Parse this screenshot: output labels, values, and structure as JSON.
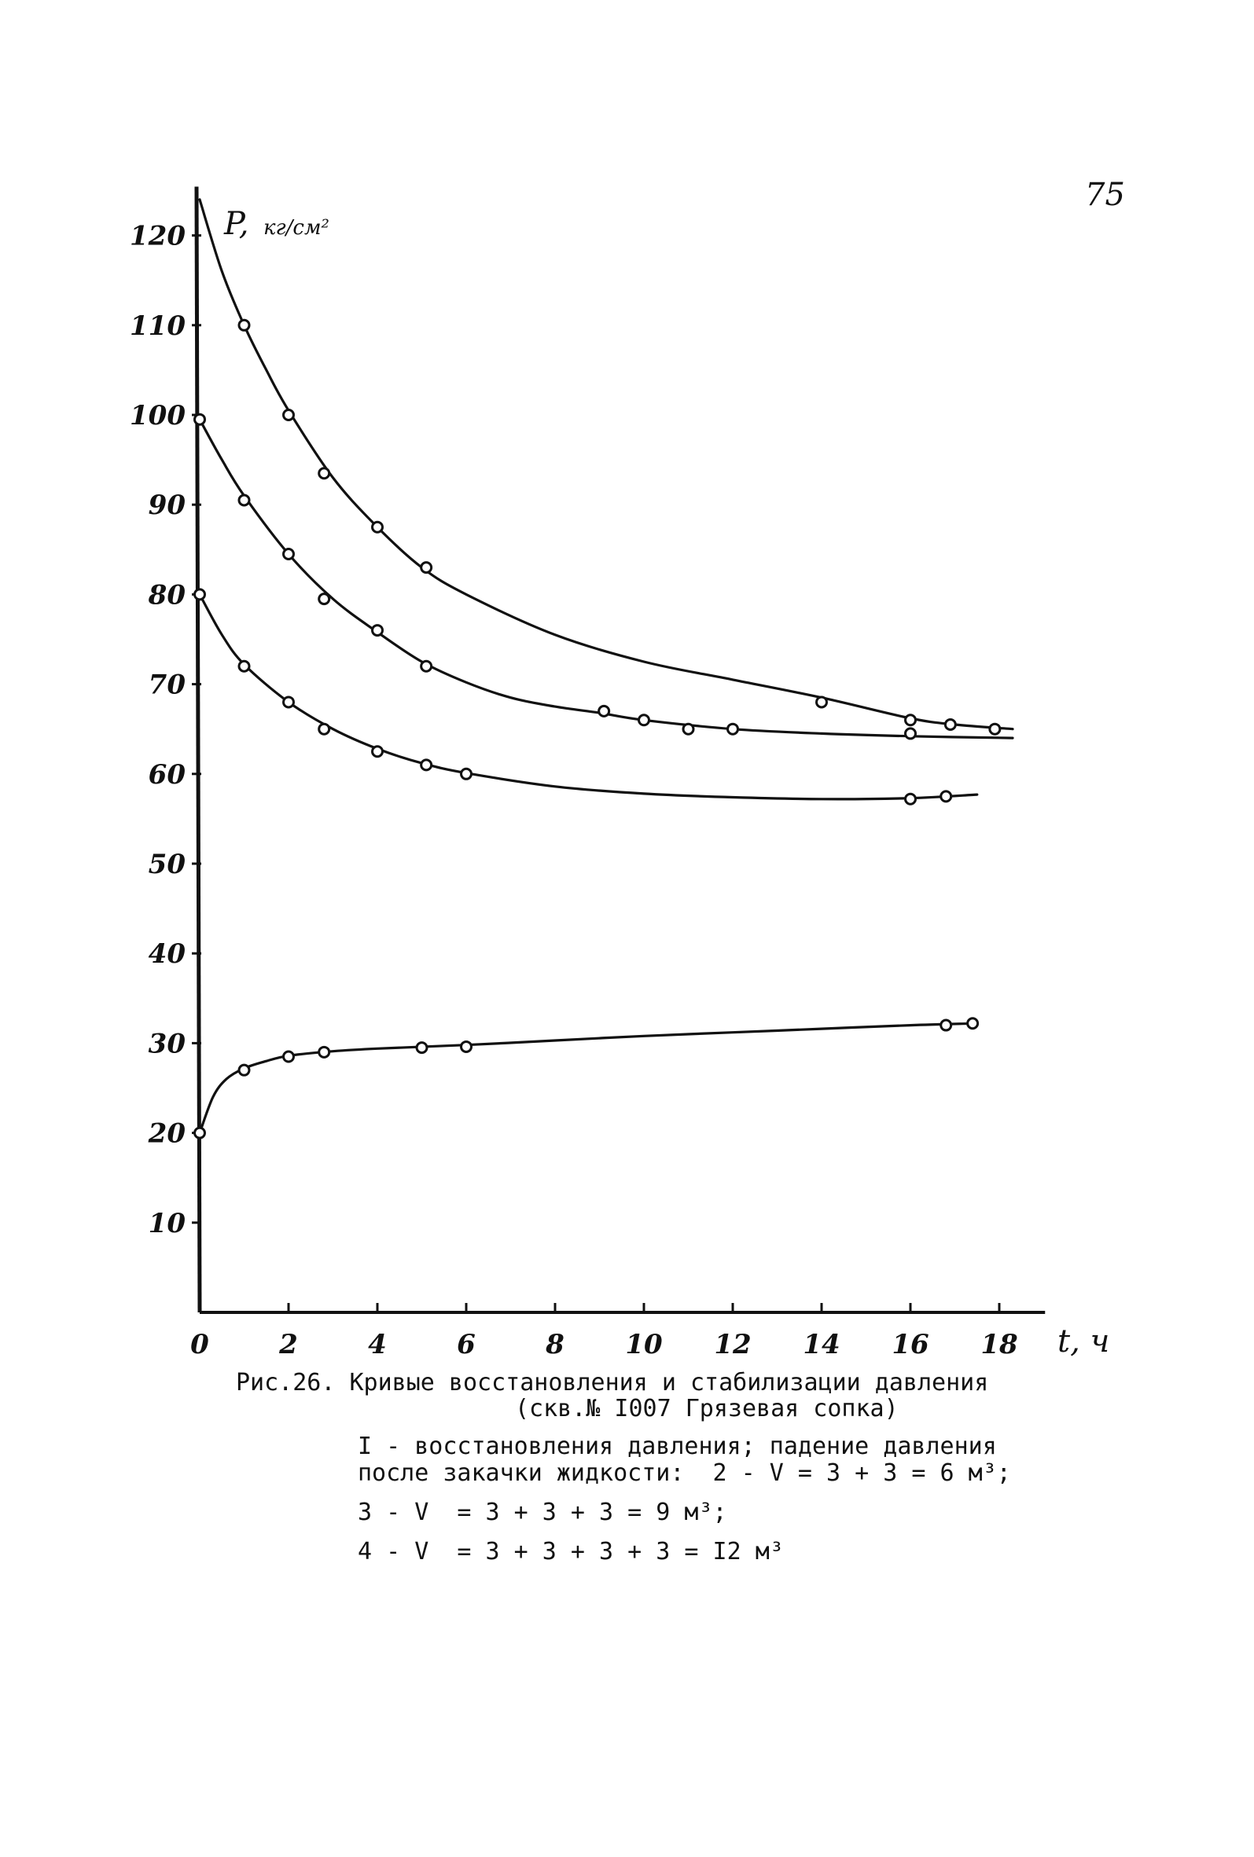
{
  "page": {
    "number": "75"
  },
  "caption": {
    "title": "Рис.26. Кривые восстановления и стабилизации давления",
    "subtitle": "(скв.№ I007 Грязевая сопка)",
    "legend_lines": [
      "I - восстановления давления; падение давления",
      "после закачки жидкости:  2 - V = 3 + 3 = 6 м³;",
      "3 - V  = 3 + 3 + 3 = 9 м³;",
      "4 - V  = 3 + 3 + 3 + 3 = I2 м³"
    ]
  },
  "chart_data": {
    "type": "line",
    "title": "",
    "ylabel": "P,",
    "ylabel_unit": "кг/см²",
    "xlabel": "t, ч",
    "xlim": [
      0,
      18.5
    ],
    "ylim": [
      0,
      125
    ],
    "xticks": [
      0,
      2,
      4,
      6,
      8,
      10,
      12,
      14,
      16,
      18
    ],
    "yticks": [
      10,
      20,
      30,
      40,
      50,
      60,
      70,
      80,
      90,
      100,
      110,
      120
    ],
    "grid": false,
    "series": [
      {
        "points": [
          [
            0,
            20
          ],
          [
            1,
            27
          ],
          [
            2,
            28.5
          ],
          [
            2.8,
            29
          ],
          [
            5,
            29.5
          ],
          [
            6,
            29.6
          ],
          [
            16.8,
            32
          ],
          [
            17.4,
            32.2
          ]
        ],
        "curve": [
          [
            0,
            20
          ],
          [
            0.3,
            24
          ],
          [
            0.6,
            26
          ],
          [
            1,
            27.2
          ],
          [
            1.5,
            28
          ],
          [
            2,
            28.6
          ],
          [
            3,
            29.1
          ],
          [
            4,
            29.4
          ],
          [
            6,
            29.8
          ],
          [
            8,
            30.3
          ],
          [
            10,
            30.8
          ],
          [
            12,
            31.2
          ],
          [
            14,
            31.6
          ],
          [
            16,
            32
          ],
          [
            17.4,
            32.2
          ]
        ]
      },
      {
        "points": [
          [
            1,
            110
          ],
          [
            2,
            100
          ],
          [
            2.8,
            93.5
          ],
          [
            4,
            87.5
          ],
          [
            5.1,
            83
          ],
          [
            14,
            68
          ],
          [
            16,
            66
          ],
          [
            16.9,
            65.5
          ],
          [
            17.9,
            65
          ]
        ],
        "curve": [
          [
            0,
            124
          ],
          [
            0.5,
            116
          ],
          [
            1,
            110
          ],
          [
            1.5,
            105
          ],
          [
            2,
            100.5
          ],
          [
            3,
            93
          ],
          [
            4,
            87.5
          ],
          [
            5,
            83
          ],
          [
            6,
            80
          ],
          [
            8,
            75.5
          ],
          [
            10,
            72.5
          ],
          [
            12,
            70.5
          ],
          [
            14,
            68.5
          ],
          [
            16,
            66.2
          ],
          [
            17,
            65.5
          ],
          [
            18.3,
            65
          ]
        ]
      },
      {
        "points": [
          [
            0,
            99.5
          ],
          [
            1,
            90.5
          ],
          [
            2,
            84.5
          ],
          [
            2.8,
            79.5
          ],
          [
            4,
            76
          ],
          [
            5.1,
            72
          ],
          [
            9.1,
            67
          ],
          [
            10,
            66
          ],
          [
            11,
            65
          ],
          [
            12,
            65
          ],
          [
            16,
            64.5
          ]
        ],
        "curve": [
          [
            0,
            99.5
          ],
          [
            0.5,
            95
          ],
          [
            1,
            91
          ],
          [
            2,
            84.5
          ],
          [
            3,
            79.5
          ],
          [
            4,
            75.8
          ],
          [
            5,
            72.5
          ],
          [
            6,
            70.2
          ],
          [
            7,
            68.5
          ],
          [
            8,
            67.5
          ],
          [
            9,
            66.8
          ],
          [
            10,
            66
          ],
          [
            12,
            65
          ],
          [
            14,
            64.5
          ],
          [
            16,
            64.2
          ],
          [
            18.3,
            64
          ]
        ]
      },
      {
        "points": [
          [
            0,
            80
          ],
          [
            1,
            72
          ],
          [
            2,
            68
          ],
          [
            2.8,
            65
          ],
          [
            4,
            62.5
          ],
          [
            5.1,
            61
          ],
          [
            6,
            60
          ],
          [
            16,
            57.2
          ],
          [
            16.8,
            57.5
          ]
        ],
        "curve": [
          [
            0,
            80
          ],
          [
            0.5,
            75.5
          ],
          [
            1,
            72.2
          ],
          [
            2,
            68
          ],
          [
            3,
            65
          ],
          [
            4,
            62.8
          ],
          [
            5,
            61.2
          ],
          [
            6,
            60.1
          ],
          [
            8,
            58.6
          ],
          [
            10,
            57.8
          ],
          [
            12,
            57.4
          ],
          [
            14,
            57.2
          ],
          [
            16,
            57.3
          ],
          [
            17.5,
            57.7
          ]
        ]
      }
    ]
  }
}
